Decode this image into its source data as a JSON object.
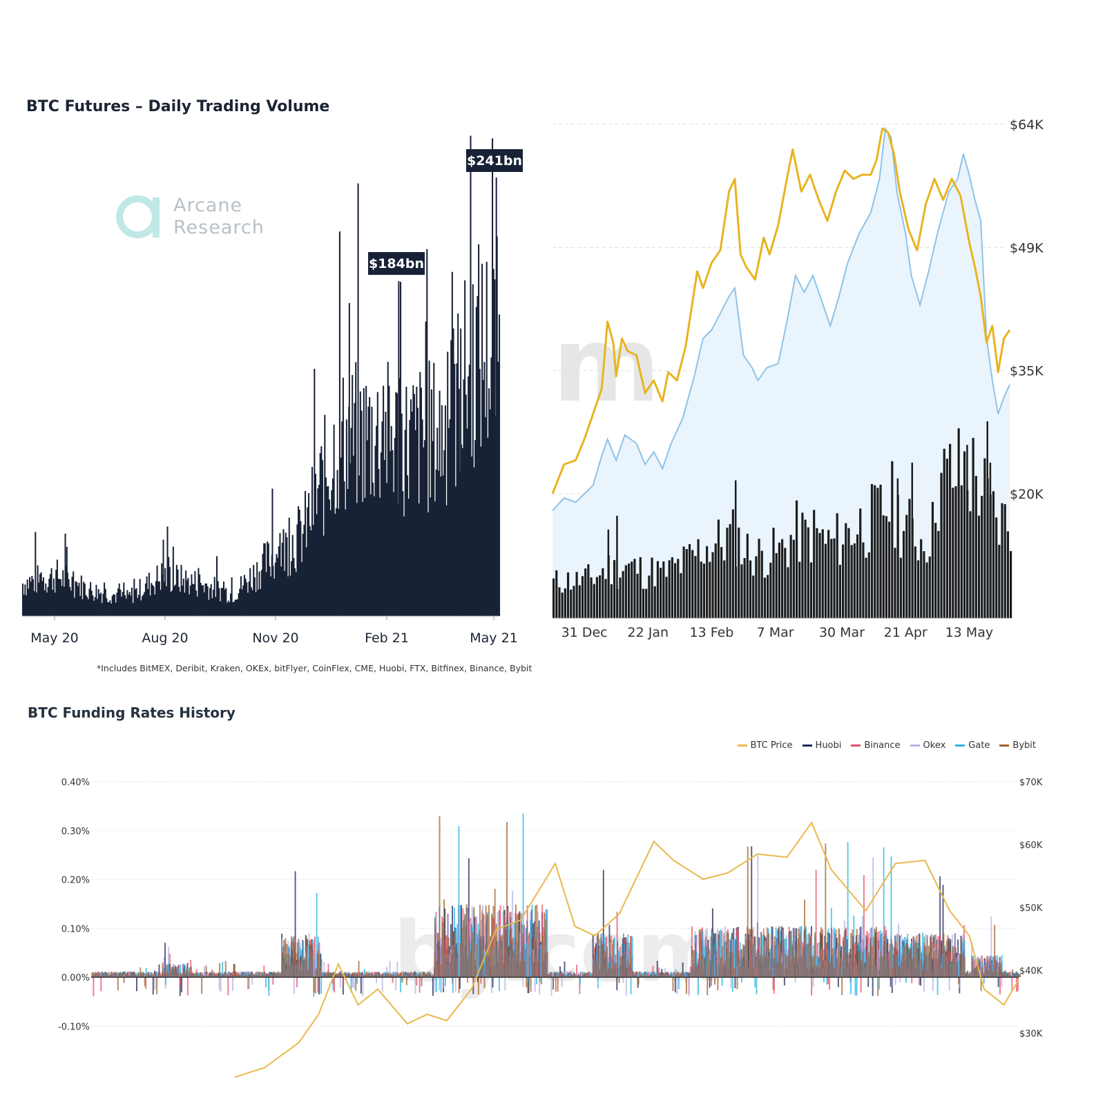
{
  "chart_data": [
    {
      "type": "bar",
      "title": "BTC Futures – Daily Trading Volume",
      "x_ticks": [
        "May 20",
        "Aug 20",
        "Nov 20",
        "Feb 21",
        "May 21"
      ],
      "annotations": [
        {
          "label": "$184bn",
          "date": "Feb 21",
          "value": 184
        },
        {
          "label": "$241bn",
          "date": "May 21",
          "value": 241
        }
      ],
      "watermark": "Arcane Research",
      "footnote": "*Includes BitMEX, Deribit, Kraken, OKEx, bitFlyer, CoinFlex, CME, Huobi, FTX, Bitfinex, Binance, Bybit",
      "unit": "USD bn",
      "monthly_typical_volume": [
        {
          "month": "Apr 20",
          "value": 18
        },
        {
          "month": "May 20",
          "value": 22
        },
        {
          "month": "Jun 20",
          "value": 14
        },
        {
          "month": "Jul 20",
          "value": 10
        },
        {
          "month": "Aug 20",
          "value": 22
        },
        {
          "month": "Sep 20",
          "value": 18
        },
        {
          "month": "Oct 20",
          "value": 12
        },
        {
          "month": "Nov 20",
          "value": 30
        },
        {
          "month": "Dec 20",
          "value": 45
        },
        {
          "month": "Jan 21",
          "value": 95
        },
        {
          "month": "Feb 21",
          "value": 100
        },
        {
          "month": "Mar 21",
          "value": 95
        },
        {
          "month": "Apr 21",
          "value": 100
        },
        {
          "month": "May 21",
          "value": 145
        }
      ],
      "spikes": [
        {
          "date": "May 20",
          "value": 38
        },
        {
          "date": "Aug 20",
          "value": 42
        },
        {
          "date": "Nov 20",
          "value": 70
        },
        {
          "date": "Jan 21",
          "value": 172
        },
        {
          "date": "Feb 21",
          "value": 184
        },
        {
          "date": "Apr 21",
          "value": 158
        },
        {
          "date": "May 21",
          "value": 241
        }
      ]
    },
    {
      "type": "line",
      "x_ticks": [
        "31 Dec",
        "22 Jan",
        "13 Feb",
        "7 Mar",
        "30 Mar",
        "21 Apr",
        "13 May"
      ],
      "y_ticks": [
        "$20K",
        "$35K",
        "$49K",
        "$64K"
      ],
      "ylim": [
        20000,
        64000
      ],
      "colors": {
        "price": "#e8b320",
        "area_line": "#8cc3e8",
        "area_fill": "#eaf4fd",
        "bars": "#1c1c1c"
      },
      "series": [
        {
          "values": [
            {
              "x": "2020-12-20",
              "y": 20000
            },
            {
              "x": "2020-12-24",
              "y": 23500
            },
            {
              "x": "2020-12-28",
              "y": 24000
            },
            {
              "x": "2020-12-31",
              "y": 26500
            },
            {
              "x": "2021-01-03",
              "y": 29500
            },
            {
              "x": "2021-01-06",
              "y": 32500
            },
            {
              "x": "2021-01-08",
              "y": 40500
            },
            {
              "x": "2021-01-10",
              "y": 38000
            },
            {
              "x": "2021-01-11",
              "y": 34000
            },
            {
              "x": "2021-01-13",
              "y": 38500
            },
            {
              "x": "2021-01-15",
              "y": 37000
            },
            {
              "x": "2021-01-18",
              "y": 36500
            },
            {
              "x": "2021-01-21",
              "y": 32000
            },
            {
              "x": "2021-01-24",
              "y": 33500
            },
            {
              "x": "2021-01-27",
              "y": 31000
            },
            {
              "x": "2021-01-29",
              "y": 34500
            },
            {
              "x": "2021-02-01",
              "y": 33500
            },
            {
              "x": "2021-02-04",
              "y": 37500
            },
            {
              "x": "2021-02-08",
              "y": 46500
            },
            {
              "x": "2021-02-10",
              "y": 44500
            },
            {
              "x": "2021-02-13",
              "y": 47500
            },
            {
              "x": "2021-02-16",
              "y": 49000
            },
            {
              "x": "2021-02-19",
              "y": 56000
            },
            {
              "x": "2021-02-21",
              "y": 57500
            },
            {
              "x": "2021-02-23",
              "y": 48500
            },
            {
              "x": "2021-02-25",
              "y": 47000
            },
            {
              "x": "2021-02-28",
              "y": 45500
            },
            {
              "x": "2021-03-03",
              "y": 50500
            },
            {
              "x": "2021-03-05",
              "y": 48500
            },
            {
              "x": "2021-03-08",
              "y": 52000
            },
            {
              "x": "2021-03-11",
              "y": 57500
            },
            {
              "x": "2021-03-13",
              "y": 61000
            },
            {
              "x": "2021-03-16",
              "y": 56000
            },
            {
              "x": "2021-03-19",
              "y": 58000
            },
            {
              "x": "2021-03-22",
              "y": 55000
            },
            {
              "x": "2021-03-25",
              "y": 52500
            },
            {
              "x": "2021-03-28",
              "y": 56000
            },
            {
              "x": "2021-03-31",
              "y": 58500
            },
            {
              "x": "2021-04-03",
              "y": 57500
            },
            {
              "x": "2021-04-06",
              "y": 58000
            },
            {
              "x": "2021-04-09",
              "y": 58000
            },
            {
              "x": "2021-04-11",
              "y": 59800
            },
            {
              "x": "2021-04-13",
              "y": 63500
            },
            {
              "x": "2021-04-15",
              "y": 63000
            },
            {
              "x": "2021-04-17",
              "y": 60500
            },
            {
              "x": "2021-04-19",
              "y": 56000
            },
            {
              "x": "2021-04-22",
              "y": 51500
            },
            {
              "x": "2021-04-25",
              "y": 49000
            },
            {
              "x": "2021-04-28",
              "y": 54500
            },
            {
              "x": "2021-05-01",
              "y": 57500
            },
            {
              "x": "2021-05-04",
              "y": 55000
            },
            {
              "x": "2021-05-07",
              "y": 57500
            },
            {
              "x": "2021-05-10",
              "y": 55500
            },
            {
              "x": "2021-05-13",
              "y": 50000
            },
            {
              "x": "2021-05-15",
              "y": 47000
            },
            {
              "x": "2021-05-17",
              "y": 43500
            },
            {
              "x": "2021-05-19",
              "y": 38000
            },
            {
              "x": "2021-05-21",
              "y": 40000
            },
            {
              "x": "2021-05-23",
              "y": 34500
            },
            {
              "x": "2021-05-25",
              "y": 38500
            },
            {
              "x": "2021-05-27",
              "y": 39500
            }
          ]
        },
        {
          "values": [
            {
              "x": "2020-12-20",
              "y": 18000
            },
            {
              "x": "2020-12-24",
              "y": 19500
            },
            {
              "x": "2020-12-28",
              "y": 19000
            },
            {
              "x": "2020-12-31",
              "y": 20000
            },
            {
              "x": "2021-01-03",
              "y": 21000
            },
            {
              "x": "2021-01-06",
              "y": 24500
            },
            {
              "x": "2021-01-08",
              "y": 26500
            },
            {
              "x": "2021-01-11",
              "y": 24000
            },
            {
              "x": "2021-01-14",
              "y": 27000
            },
            {
              "x": "2021-01-18",
              "y": 26000
            },
            {
              "x": "2021-01-21",
              "y": 23500
            },
            {
              "x": "2021-01-24",
              "y": 25000
            },
            {
              "x": "2021-01-27",
              "y": 23000
            },
            {
              "x": "2021-01-30",
              "y": 26000
            },
            {
              "x": "2021-02-03",
              "y": 29000
            },
            {
              "x": "2021-02-07",
              "y": 34000
            },
            {
              "x": "2021-02-10",
              "y": 38500
            },
            {
              "x": "2021-02-13",
              "y": 39500
            },
            {
              "x": "2021-02-16",
              "y": 41500
            },
            {
              "x": "2021-02-19",
              "y": 43500
            },
            {
              "x": "2021-02-21",
              "y": 44500
            },
            {
              "x": "2021-02-24",
              "y": 36500
            },
            {
              "x": "2021-02-27",
              "y": 35000
            },
            {
              "x": "2021-03-01",
              "y": 33500
            },
            {
              "x": "2021-03-04",
              "y": 35000
            },
            {
              "x": "2021-03-08",
              "y": 35500
            },
            {
              "x": "2021-03-11",
              "y": 40500
            },
            {
              "x": "2021-03-14",
              "y": 46000
            },
            {
              "x": "2021-03-17",
              "y": 44000
            },
            {
              "x": "2021-03-20",
              "y": 46000
            },
            {
              "x": "2021-03-23",
              "y": 43000
            },
            {
              "x": "2021-03-26",
              "y": 40000
            },
            {
              "x": "2021-03-29",
              "y": 43500
            },
            {
              "x": "2021-04-01",
              "y": 47500
            },
            {
              "x": "2021-04-05",
              "y": 51000
            },
            {
              "x": "2021-04-09",
              "y": 53500
            },
            {
              "x": "2021-04-12",
              "y": 57500
            },
            {
              "x": "2021-04-14",
              "y": 63500
            },
            {
              "x": "2021-04-16",
              "y": 62500
            },
            {
              "x": "2021-04-18",
              "y": 56000
            },
            {
              "x": "2021-04-21",
              "y": 51000
            },
            {
              "x": "2021-04-23",
              "y": 46000
            },
            {
              "x": "2021-04-26",
              "y": 42500
            },
            {
              "x": "2021-04-29",
              "y": 46500
            },
            {
              "x": "2021-05-02",
              "y": 51000
            },
            {
              "x": "2021-05-06",
              "y": 56000
            },
            {
              "x": "2021-05-09",
              "y": 57500
            },
            {
              "x": "2021-05-11",
              "y": 60500
            },
            {
              "x": "2021-05-13",
              "y": 58000
            },
            {
              "x": "2021-05-15",
              "y": 55000
            },
            {
              "x": "2021-05-17",
              "y": 52500
            },
            {
              "x": "2021-05-19",
              "y": 38500
            },
            {
              "x": "2021-05-21",
              "y": 33500
            },
            {
              "x": "2021-05-23",
              "y": 29500
            },
            {
              "x": "2021-05-25",
              "y": 31500
            },
            {
              "x": "2021-05-27",
              "y": 33000
            }
          ]
        }
      ],
      "volume_bars": [
        {
          "x": "2021-01-08",
          "y": 45
        },
        {
          "x": "2021-01-11",
          "y": 52
        },
        {
          "x": "2021-02-21",
          "y": 70
        },
        {
          "x": "2021-04-18",
          "y": 71
        },
        {
          "x": "2021-04-23",
          "y": 79
        },
        {
          "x": "2021-05-12",
          "y": 88
        },
        {
          "x": "2021-05-19",
          "y": 100
        },
        {
          "x": "2021-05-20",
          "y": 79
        }
      ]
    },
    {
      "type": "line",
      "title": "BTC Funding Rates History",
      "y_ticks_left": [
        "0.40%",
        "0.30%",
        "0.20%",
        "0.10%",
        "0.00%",
        "-0.10%"
      ],
      "y_ticks_right": [
        "$70K",
        "$60K",
        "$50K",
        "$40K",
        "$30K"
      ],
      "ylim_left": [
        -0.1,
        0.4
      ],
      "ylim_right": [
        30000,
        70000
      ],
      "legend": [
        {
          "name": "BTC Price",
          "color": "#e8b84a"
        },
        {
          "name": "Huobi",
          "color": "#1f2757"
        },
        {
          "name": "Binance",
          "color": "#e8506a"
        },
        {
          "name": "Okex",
          "color": "#b5b0e6"
        },
        {
          "name": "Gate",
          "color": "#2bb5e0"
        },
        {
          "name": "Bybit",
          "color": "#a0622c"
        }
      ],
      "btc_price": [
        {
          "x": "2020-12-18",
          "y": 23000
        },
        {
          "x": "2020-12-24",
          "y": 24500
        },
        {
          "x": "2020-12-31",
          "y": 28500
        },
        {
          "x": "2021-01-04",
          "y": 33000
        },
        {
          "x": "2021-01-08",
          "y": 41000
        },
        {
          "x": "2021-01-12",
          "y": 34500
        },
        {
          "x": "2021-01-16",
          "y": 37000
        },
        {
          "x": "2021-01-22",
          "y": 31500
        },
        {
          "x": "2021-01-26",
          "y": 33000
        },
        {
          "x": "2021-01-30",
          "y": 32000
        },
        {
          "x": "2021-02-04",
          "y": 37000
        },
        {
          "x": "2021-02-09",
          "y": 46500
        },
        {
          "x": "2021-02-14",
          "y": 48000
        },
        {
          "x": "2021-02-21",
          "y": 57000
        },
        {
          "x": "2021-02-25",
          "y": 47000
        },
        {
          "x": "2021-03-01",
          "y": 45500
        },
        {
          "x": "2021-03-06",
          "y": 49000
        },
        {
          "x": "2021-03-13",
          "y": 60500
        },
        {
          "x": "2021-03-17",
          "y": 57500
        },
        {
          "x": "2021-03-23",
          "y": 54500
        },
        {
          "x": "2021-03-28",
          "y": 55500
        },
        {
          "x": "2021-04-03",
          "y": 58500
        },
        {
          "x": "2021-04-09",
          "y": 58000
        },
        {
          "x": "2021-04-14",
          "y": 63500
        },
        {
          "x": "2021-04-18",
          "y": 56000
        },
        {
          "x": "2021-04-25",
          "y": 49500
        },
        {
          "x": "2021-05-01",
          "y": 57000
        },
        {
          "x": "2021-05-07",
          "y": 57500
        },
        {
          "x": "2021-05-12",
          "y": 49500
        },
        {
          "x": "2021-05-16",
          "y": 45500
        },
        {
          "x": "2021-05-19",
          "y": 37000
        },
        {
          "x": "2021-05-23",
          "y": 34500
        },
        {
          "x": "2021-05-26",
          "y": 38500
        }
      ]
    }
  ]
}
